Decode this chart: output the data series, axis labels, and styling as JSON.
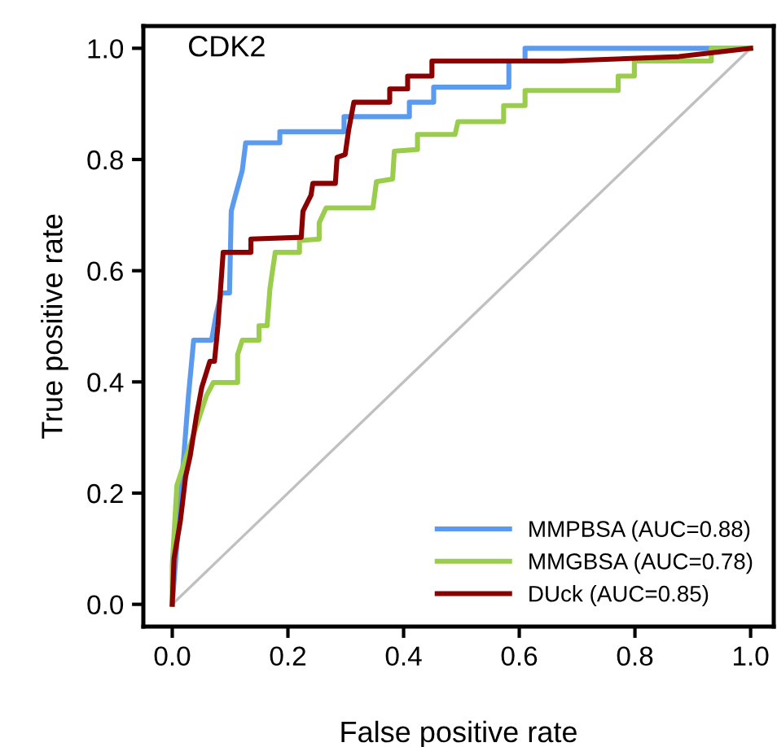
{
  "chart_data": {
    "type": "line",
    "title": "CDK2",
    "xlabel": "False positive rate",
    "ylabel": "True positive rate",
    "xlim": [
      -0.05,
      1.04
    ],
    "ylim": [
      -0.04,
      1.04
    ],
    "xticks": [
      {
        "value": 0,
        "label": "0.0"
      },
      0.2,
      0.4,
      0.6,
      0.8,
      {
        "value": 1,
        "label": "1.0"
      }
    ],
    "yticks": [
      {
        "value": 0,
        "label": "0.0"
      },
      0.2,
      0.4,
      0.6,
      0.8,
      {
        "value": 1,
        "label": "1.0"
      }
    ],
    "grid": false,
    "legend": "bottom right",
    "line_style": "solid",
    "marker": "none",
    "series": [
      {
        "color": "#c0c0c0",
        "x": [
          0,
          1
        ],
        "values": [
          0,
          1
        ]
      },
      {
        "name": "MMPBSA (AUC=0.88)",
        "color": "#5b9bef",
        "x": [
          0,
          0.003,
          0.02,
          0.028,
          0.037,
          0.068,
          0.076,
          0.085,
          0.099,
          0.102,
          0.107,
          0.121,
          0.127,
          0.186,
          0.186,
          0.297,
          0.297,
          0.41,
          0.41,
          0.452,
          0.452,
          0.582,
          0.582,
          0.61,
          0.61,
          1
        ],
        "values": [
          0,
          0.041,
          0.267,
          0.375,
          0.475,
          0.475,
          0.522,
          0.56,
          0.56,
          0.707,
          0.727,
          0.78,
          0.83,
          0.83,
          0.85,
          0.85,
          0.877,
          0.877,
          0.903,
          0.903,
          0.93,
          0.93,
          0.977,
          0.977,
          1,
          1
        ]
      },
      {
        "name": "MMGBSA (AUC=0.78)",
        "color": "#9acd4c",
        "x": [
          0,
          0,
          0.008,
          0.059,
          0.071,
          0.113,
          0.113,
          0.121,
          0.15,
          0.15,
          0.164,
          0.169,
          0.178,
          0.22,
          0.22,
          0.254,
          0.254,
          0.266,
          0.347,
          0.353,
          0.381,
          0.384,
          0.424,
          0.424,
          0.489,
          0.494,
          0.573,
          0.573,
          0.61,
          0.61,
          0.771,
          0.771,
          0.799,
          0.799,
          0.932,
          0.932,
          1
        ],
        "values": [
          0,
          0.07,
          0.214,
          0.375,
          0.399,
          0.399,
          0.449,
          0.475,
          0.475,
          0.501,
          0.501,
          0.569,
          0.633,
          0.633,
          0.654,
          0.657,
          0.686,
          0.713,
          0.713,
          0.76,
          0.765,
          0.815,
          0.818,
          0.845,
          0.845,
          0.868,
          0.868,
          0.897,
          0.897,
          0.924,
          0.924,
          0.95,
          0.95,
          0.977,
          0.977,
          1,
          1
        ]
      },
      {
        "name": "DUck (AUC=0.85)",
        "color": "#8b0000",
        "x": [
          0,
          0.003,
          0.014,
          0.023,
          0.031,
          0.042,
          0.051,
          0.065,
          0.073,
          0.079,
          0.088,
          0.136,
          0.136,
          0.223,
          0.226,
          0.24,
          0.243,
          0.282,
          0.285,
          0.299,
          0.305,
          0.314,
          0.376,
          0.376,
          0.407,
          0.407,
          0.449,
          0.449,
          0.672,
          0.876,
          1
        ],
        "values": [
          0,
          0.082,
          0.15,
          0.229,
          0.267,
          0.34,
          0.39,
          0.437,
          0.437,
          0.501,
          0.633,
          0.633,
          0.657,
          0.66,
          0.707,
          0.736,
          0.757,
          0.757,
          0.804,
          0.809,
          0.853,
          0.903,
          0.903,
          0.927,
          0.927,
          0.95,
          0.95,
          0.977,
          0.977,
          0.985,
          1
        ]
      }
    ]
  }
}
